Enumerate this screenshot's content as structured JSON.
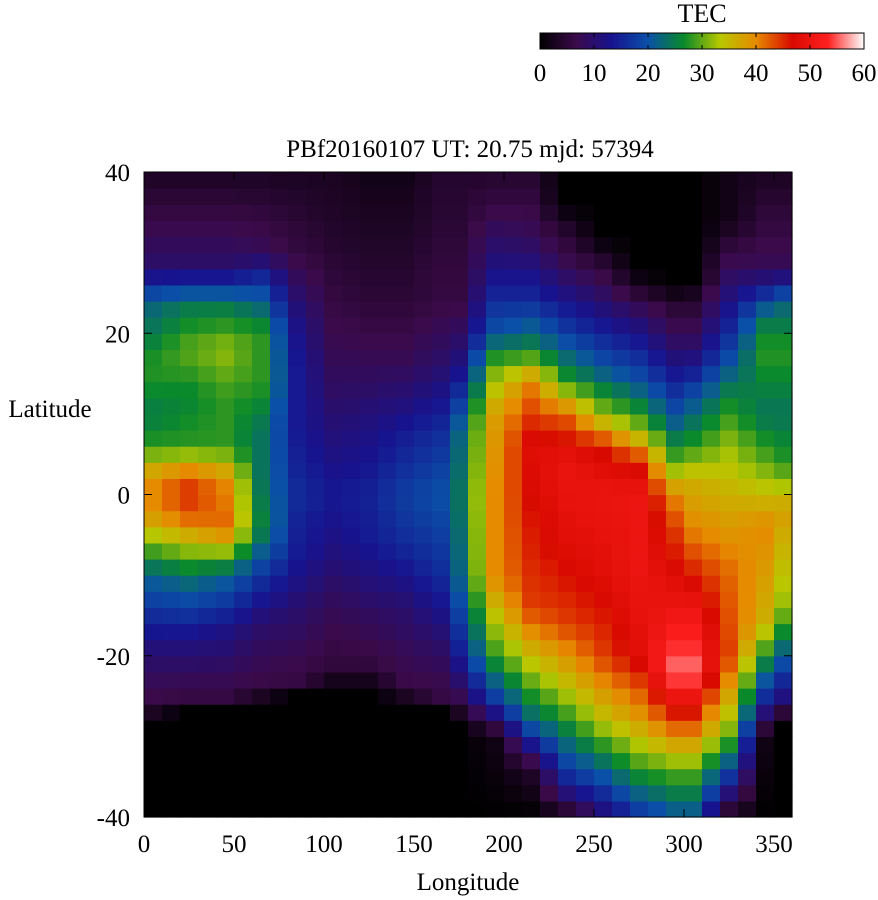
{
  "chart_data": {
    "type": "heatmap",
    "title": "PBf20160107  UT: 20.75  mjd: 57394",
    "xlabel": "Longitude",
    "ylabel": "Latitude",
    "xlim": [
      0,
      360
    ],
    "ylim": [
      -40,
      40
    ],
    "x_ticks": [
      0,
      50,
      100,
      150,
      200,
      250,
      300,
      350
    ],
    "y_ticks": [
      -40,
      -20,
      0,
      20,
      40
    ],
    "grid": false,
    "cell_size_deg": {
      "lon": 10,
      "lat": 2
    },
    "colorbar": {
      "title": "TEC",
      "range": [
        0,
        60
      ],
      "ticks": [
        0,
        10,
        20,
        30,
        40,
        50,
        60
      ],
      "placement": "top-right",
      "colors": [
        "#000000",
        "#3b0a4a",
        "#17138f",
        "#0a50a8",
        "#0a8a2a",
        "#b8c800",
        "#e68a00",
        "#d80a00",
        "#ff2020",
        "#ffffff"
      ]
    },
    "lon_centers": [
      5,
      15,
      25,
      35,
      45,
      55,
      65,
      75,
      85,
      95,
      105,
      115,
      125,
      135,
      145,
      155,
      165,
      175,
      185,
      195,
      205,
      215,
      225,
      235,
      245,
      255,
      265,
      275,
      285,
      295,
      305,
      315,
      325,
      335,
      345,
      355
    ],
    "lat_centers": [
      -39,
      -37,
      -35,
      -33,
      -31,
      -29,
      -27,
      -25,
      -23,
      -21,
      -19,
      -17,
      -15,
      -13,
      -11,
      -9,
      -7,
      -5,
      -3,
      -1,
      1,
      3,
      5,
      7,
      9,
      11,
      13,
      15,
      17,
      19,
      21,
      23,
      25,
      27,
      29,
      31,
      33,
      35,
      37,
      39
    ],
    "tec_profiles": [
      {
        "lon": 5,
        "profile": [
          [
            -40,
            0
          ],
          [
            -28,
            0
          ],
          [
            -26,
            6
          ],
          [
            -20,
            10
          ],
          [
            -10,
            22
          ],
          [
            -2,
            40
          ],
          [
            2,
            40
          ],
          [
            6,
            28
          ],
          [
            10,
            25
          ],
          [
            16,
            28
          ],
          [
            24,
            22
          ],
          [
            28,
            10
          ],
          [
            40,
            3
          ]
        ]
      },
      {
        "lon": 25,
        "profile": [
          [
            -40,
            0
          ],
          [
            -27,
            0
          ],
          [
            -25,
            6
          ],
          [
            -18,
            12
          ],
          [
            -10,
            24
          ],
          [
            -2,
            44
          ],
          [
            2,
            44
          ],
          [
            6,
            28
          ],
          [
            12,
            26
          ],
          [
            18,
            30
          ],
          [
            24,
            24
          ],
          [
            28,
            10
          ],
          [
            40,
            3
          ]
        ]
      },
      {
        "lon": 45,
        "profile": [
          [
            -40,
            0
          ],
          [
            -27,
            0
          ],
          [
            -25,
            6
          ],
          [
            -17,
            12
          ],
          [
            -10,
            22
          ],
          [
            -4,
            42
          ],
          [
            2,
            40
          ],
          [
            6,
            28
          ],
          [
            12,
            28
          ],
          [
            18,
            32
          ],
          [
            24,
            24
          ],
          [
            28,
            10
          ],
          [
            40,
            3
          ]
        ]
      },
      {
        "lon": 65,
        "profile": [
          [
            -40,
            0
          ],
          [
            -26,
            0
          ],
          [
            -24,
            6
          ],
          [
            -16,
            10
          ],
          [
            -10,
            17
          ],
          [
            -4,
            26
          ],
          [
            2,
            24
          ],
          [
            8,
            24
          ],
          [
            14,
            28
          ],
          [
            20,
            28
          ],
          [
            26,
            18
          ],
          [
            30,
            8
          ],
          [
            40,
            3
          ]
        ]
      },
      {
        "lon": 85,
        "profile": [
          [
            -40,
            0
          ],
          [
            -25,
            0
          ],
          [
            -23,
            6
          ],
          [
            -14,
            10
          ],
          [
            -8,
            14
          ],
          [
            0,
            16
          ],
          [
            8,
            14
          ],
          [
            16,
            14
          ],
          [
            22,
            12
          ],
          [
            30,
            6
          ],
          [
            40,
            3
          ]
        ]
      },
      {
        "lon": 105,
        "profile": [
          [
            -40,
            0
          ],
          [
            -24,
            0
          ],
          [
            -22,
            5
          ],
          [
            -14,
            8
          ],
          [
            -6,
            12
          ],
          [
            0,
            14
          ],
          [
            8,
            11
          ],
          [
            16,
            8
          ],
          [
            24,
            6
          ],
          [
            32,
            4
          ],
          [
            40,
            3
          ]
        ]
      },
      {
        "lon": 125,
        "profile": [
          [
            -40,
            0
          ],
          [
            -24,
            0
          ],
          [
            -22,
            5
          ],
          [
            -14,
            9
          ],
          [
            -6,
            14
          ],
          [
            0,
            15
          ],
          [
            8,
            12
          ],
          [
            16,
            8
          ],
          [
            24,
            5
          ],
          [
            40,
            2
          ]
        ]
      },
      {
        "lon": 145,
        "profile": [
          [
            -40,
            0
          ],
          [
            -26,
            0
          ],
          [
            -24,
            6
          ],
          [
            -14,
            10
          ],
          [
            -6,
            16
          ],
          [
            0,
            18
          ],
          [
            8,
            14
          ],
          [
            16,
            8
          ],
          [
            24,
            5
          ],
          [
            40,
            2
          ]
        ]
      },
      {
        "lon": 165,
        "profile": [
          [
            -40,
            0
          ],
          [
            -27,
            0
          ],
          [
            -25,
            6
          ],
          [
            -18,
            10
          ],
          [
            -10,
            16
          ],
          [
            0,
            20
          ],
          [
            8,
            16
          ],
          [
            16,
            10
          ],
          [
            24,
            6
          ],
          [
            40,
            4
          ]
        ]
      },
      {
        "lon": 175,
        "profile": [
          [
            -40,
            0
          ],
          [
            -28,
            0
          ],
          [
            -26,
            6
          ],
          [
            -20,
            14
          ],
          [
            -10,
            22
          ],
          [
            0,
            24
          ],
          [
            8,
            22
          ],
          [
            16,
            12
          ],
          [
            24,
            6
          ],
          [
            40,
            4
          ]
        ]
      },
      {
        "lon": 195,
        "profile": [
          [
            -40,
            0
          ],
          [
            -30,
            2
          ],
          [
            -26,
            16
          ],
          [
            -20,
            28
          ],
          [
            -10,
            40
          ],
          [
            0,
            40
          ],
          [
            10,
            38
          ],
          [
            16,
            30
          ],
          [
            20,
            20
          ],
          [
            28,
            12
          ],
          [
            36,
            6
          ],
          [
            40,
            4
          ]
        ]
      },
      {
        "lon": 215,
        "profile": [
          [
            -40,
            0
          ],
          [
            -34,
            4
          ],
          [
            -28,
            22
          ],
          [
            -22,
            32
          ],
          [
            -14,
            44
          ],
          [
            -4,
            46
          ],
          [
            6,
            48
          ],
          [
            14,
            40
          ],
          [
            18,
            26
          ],
          [
            24,
            16
          ],
          [
            32,
            8
          ],
          [
            40,
            4
          ]
        ]
      },
      {
        "lon": 235,
        "profile": [
          [
            -40,
            2
          ],
          [
            -36,
            14
          ],
          [
            -30,
            24
          ],
          [
            -24,
            34
          ],
          [
            -16,
            44
          ],
          [
            -6,
            48
          ],
          [
            4,
            50
          ],
          [
            10,
            42
          ],
          [
            14,
            28
          ],
          [
            20,
            18
          ],
          [
            28,
            8
          ],
          [
            34,
            3
          ],
          [
            36,
            0
          ],
          [
            40,
            0
          ]
        ]
      },
      {
        "lon": 255,
        "profile": [
          [
            -40,
            10
          ],
          [
            -34,
            22
          ],
          [
            -28,
            34
          ],
          [
            -20,
            44
          ],
          [
            -10,
            48
          ],
          [
            0,
            50
          ],
          [
            6,
            46
          ],
          [
            10,
            32
          ],
          [
            16,
            20
          ],
          [
            24,
            10
          ],
          [
            30,
            3
          ],
          [
            32,
            0
          ],
          [
            40,
            0
          ]
        ]
      },
      {
        "lon": 275,
        "profile": [
          [
            -40,
            16
          ],
          [
            -34,
            28
          ],
          [
            -28,
            38
          ],
          [
            -20,
            48
          ],
          [
            -10,
            50
          ],
          [
            0,
            50
          ],
          [
            4,
            46
          ],
          [
            8,
            32
          ],
          [
            14,
            20
          ],
          [
            22,
            10
          ],
          [
            26,
            3
          ],
          [
            28,
            0
          ],
          [
            40,
            0
          ]
        ]
      },
      {
        "lon": 295,
        "profile": [
          [
            -40,
            20
          ],
          [
            -34,
            30
          ],
          [
            -28,
            44
          ],
          [
            -22,
            56
          ],
          [
            -14,
            50
          ],
          [
            -4,
            44
          ],
          [
            0,
            40
          ],
          [
            4,
            30
          ],
          [
            10,
            20
          ],
          [
            18,
            10
          ],
          [
            24,
            4
          ],
          [
            26,
            0
          ],
          [
            40,
            0
          ]
        ]
      },
      {
        "lon": 305,
        "profile": [
          [
            -40,
            20
          ],
          [
            -34,
            30
          ],
          [
            -28,
            44
          ],
          [
            -22,
            56
          ],
          [
            -14,
            50
          ],
          [
            -4,
            40
          ],
          [
            2,
            36
          ],
          [
            6,
            28
          ],
          [
            12,
            20
          ],
          [
            18,
            10
          ],
          [
            24,
            4
          ],
          [
            27,
            0
          ],
          [
            40,
            0
          ]
        ]
      },
      {
        "lon": 325,
        "profile": [
          [
            -40,
            2
          ],
          [
            -36,
            14
          ],
          [
            -30,
            30
          ],
          [
            -20,
            44
          ],
          [
            -10,
            42
          ],
          [
            0,
            36
          ],
          [
            6,
            32
          ],
          [
            12,
            26
          ],
          [
            18,
            18
          ],
          [
            26,
            10
          ],
          [
            32,
            4
          ],
          [
            34,
            2
          ],
          [
            40,
            2
          ]
        ]
      },
      {
        "lon": 345,
        "profile": [
          [
            -40,
            0
          ],
          [
            -30,
            2
          ],
          [
            -26,
            14
          ],
          [
            -16,
            36
          ],
          [
            -4,
            40
          ],
          [
            4,
            30
          ],
          [
            10,
            24
          ],
          [
            18,
            28
          ],
          [
            22,
            24
          ],
          [
            28,
            8
          ],
          [
            40,
            3
          ]
        ]
      },
      {
        "lon": 355,
        "profile": [
          [
            -40,
            0
          ],
          [
            -28,
            0
          ],
          [
            -26,
            10
          ],
          [
            -14,
            32
          ],
          [
            -2,
            38
          ],
          [
            4,
            28
          ],
          [
            10,
            24
          ],
          [
            18,
            28
          ],
          [
            24,
            22
          ],
          [
            28,
            8
          ],
          [
            40,
            3
          ]
        ]
      }
    ]
  }
}
